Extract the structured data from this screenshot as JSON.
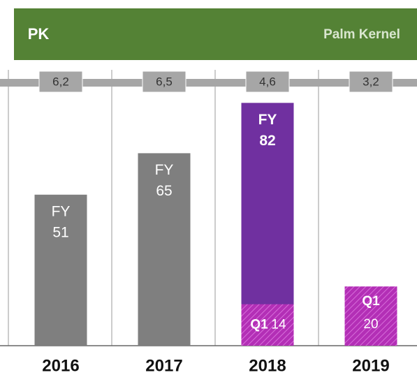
{
  "header": {
    "code": "PK",
    "name": "Palm Kernel"
  },
  "chart_data": {
    "type": "bar",
    "categories": [
      "2016",
      "2017",
      "2018",
      "2019"
    ],
    "series": [
      {
        "name": "FY",
        "colors": [
          "#7f7f7f",
          "#7f7f7f",
          "#7030a0",
          null
        ],
        "values": [
          51,
          65,
          82,
          null
        ]
      },
      {
        "name": "Q1",
        "color": "#b32fb6",
        "values": [
          null,
          null,
          14,
          20
        ]
      }
    ],
    "ratios": {
      "values": [
        6.2,
        6.5,
        4.6,
        3.2
      ],
      "value_labels": [
        "6,2",
        "6,5",
        "4,6",
        "3,2"
      ]
    }
  }
}
